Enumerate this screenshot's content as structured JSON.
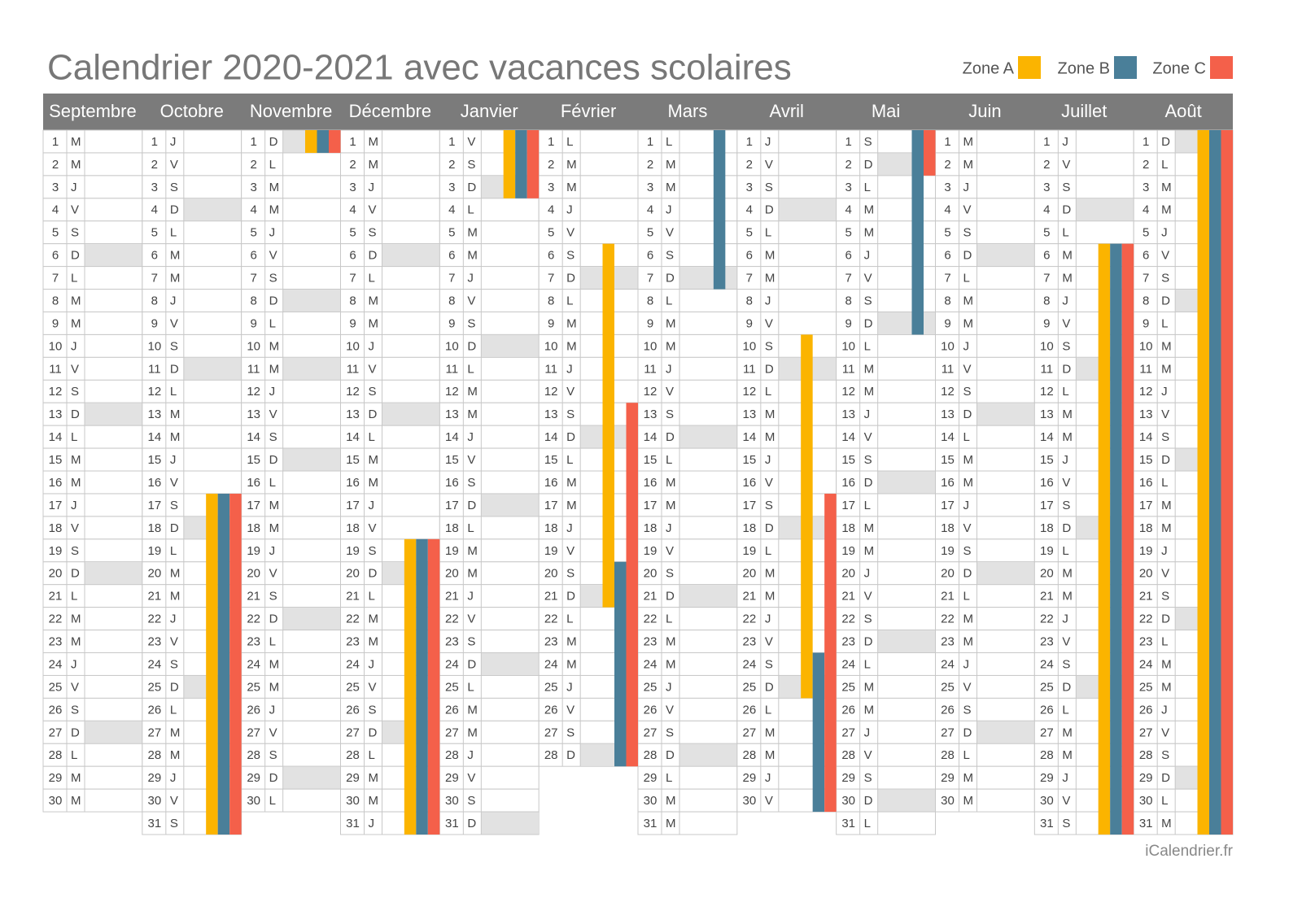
{
  "header": {
    "title": "Calendrier 2020-2021 avec vacances scolaires"
  },
  "zones": [
    {
      "name": "Zone A",
      "color": "#fbb400",
      "periods": [
        [
          1,
          17,
          31
        ],
        [
          2,
          1,
          1
        ],
        [
          3,
          19,
          31
        ],
        [
          4,
          1,
          3
        ],
        [
          5,
          6,
          21
        ],
        [
          7,
          10,
          25
        ],
        [
          10,
          6,
          31
        ],
        [
          11,
          1,
          31
        ]
      ]
    },
    {
      "name": "Zone B",
      "color": "#4a7f99",
      "periods": [
        [
          1,
          17,
          31
        ],
        [
          2,
          1,
          1
        ],
        [
          3,
          19,
          31
        ],
        [
          4,
          1,
          3
        ],
        [
          5,
          20,
          28
        ],
        [
          6,
          1,
          7
        ],
        [
          7,
          24,
          30
        ],
        [
          8,
          1,
          9
        ],
        [
          10,
          6,
          31
        ],
        [
          11,
          1,
          31
        ]
      ]
    },
    {
      "name": "Zone C",
      "color": "#f4604a",
      "periods": [
        [
          1,
          17,
          31
        ],
        [
          2,
          1,
          1
        ],
        [
          3,
          19,
          31
        ],
        [
          4,
          1,
          3
        ],
        [
          5,
          13,
          28
        ],
        [
          7,
          17,
          30
        ],
        [
          8,
          1,
          2
        ],
        [
          10,
          6,
          31
        ],
        [
          11,
          1,
          31
        ]
      ]
    }
  ],
  "months": [
    {
      "name": "Septembre",
      "days": [
        1,
        2,
        3,
        4,
        5,
        6,
        7,
        8,
        9,
        10,
        11,
        12,
        13,
        14,
        15,
        16,
        17,
        18,
        19,
        20,
        21,
        22,
        23,
        24,
        25,
        26,
        27,
        28,
        29,
        30
      ],
      "letters": [
        "M",
        "M",
        "J",
        "V",
        "S",
        "D",
        "L",
        "M",
        "M",
        "J",
        "V",
        "S",
        "D",
        "L",
        "M",
        "M",
        "J",
        "V",
        "S",
        "D",
        "L",
        "M",
        "M",
        "J",
        "V",
        "S",
        "D",
        "L",
        "M",
        "M"
      ],
      "shaded": [
        6,
        13,
        20,
        27
      ]
    },
    {
      "name": "Octobre",
      "days": [
        1,
        2,
        3,
        4,
        5,
        6,
        7,
        8,
        9,
        10,
        11,
        12,
        13,
        14,
        15,
        16,
        17,
        18,
        19,
        20,
        21,
        22,
        23,
        24,
        25,
        26,
        27,
        28,
        29,
        30,
        31
      ],
      "letters": [
        "J",
        "V",
        "S",
        "D",
        "L",
        "M",
        "M",
        "J",
        "V",
        "S",
        "D",
        "L",
        "M",
        "M",
        "J",
        "V",
        "S",
        "D",
        "L",
        "M",
        "M",
        "J",
        "V",
        "S",
        "D",
        "L",
        "M",
        "M",
        "J",
        "V",
        "S"
      ],
      "shaded": [
        4,
        11,
        18,
        25
      ]
    },
    {
      "name": "Novembre",
      "days": [
        1,
        2,
        3,
        4,
        5,
        6,
        7,
        8,
        9,
        10,
        11,
        12,
        13,
        14,
        15,
        16,
        17,
        18,
        19,
        20,
        21,
        22,
        23,
        24,
        25,
        26,
        27,
        28,
        29,
        30
      ],
      "letters": [
        "D",
        "L",
        "M",
        "M",
        "J",
        "V",
        "S",
        "D",
        "L",
        "M",
        "M",
        "J",
        "V",
        "S",
        "D",
        "L",
        "M",
        "M",
        "J",
        "V",
        "S",
        "D",
        "L",
        "M",
        "M",
        "J",
        "V",
        "S",
        "D",
        "L"
      ],
      "shaded": [
        1,
        8,
        11,
        15,
        22,
        29
      ]
    },
    {
      "name": "Décembre",
      "days": [
        1,
        2,
        3,
        4,
        5,
        6,
        7,
        8,
        9,
        10,
        11,
        12,
        13,
        14,
        15,
        16,
        17,
        18,
        19,
        20,
        21,
        22,
        23,
        24,
        25,
        26,
        27,
        28,
        29,
        30,
        31
      ],
      "letters": [
        "M",
        "M",
        "J",
        "V",
        "S",
        "D",
        "L",
        "M",
        "M",
        "J",
        "V",
        "S",
        "D",
        "L",
        "M",
        "M",
        "J",
        "V",
        "S",
        "D",
        "L",
        "M",
        "M",
        "J",
        "V",
        "S",
        "D",
        "L",
        "M",
        "M",
        "J"
      ],
      "shaded": [
        6,
        13,
        20,
        27
      ]
    },
    {
      "name": "Janvier",
      "days": [
        1,
        2,
        3,
        4,
        5,
        6,
        7,
        8,
        9,
        10,
        11,
        12,
        13,
        14,
        15,
        16,
        17,
        18,
        19,
        20,
        21,
        22,
        23,
        24,
        25,
        26,
        27,
        28,
        29,
        30,
        31
      ],
      "letters": [
        "V",
        "S",
        "D",
        "L",
        "M",
        "M",
        "J",
        "V",
        "S",
        "D",
        "L",
        "M",
        "M",
        "J",
        "V",
        "S",
        "D",
        "L",
        "M",
        "M",
        "J",
        "V",
        "S",
        "D",
        "L",
        "M",
        "M",
        "J",
        "V",
        "S",
        "D"
      ],
      "shaded": [
        3,
        10,
        17,
        24,
        31
      ]
    },
    {
      "name": "Février",
      "days": [
        1,
        2,
        3,
        4,
        5,
        6,
        7,
        8,
        9,
        10,
        11,
        12,
        13,
        14,
        15,
        16,
        17,
        18,
        19,
        20,
        21,
        22,
        23,
        24,
        25,
        26,
        27,
        28
      ],
      "letters": [
        "L",
        "M",
        "M",
        "J",
        "V",
        "S",
        "D",
        "L",
        "M",
        "M",
        "J",
        "V",
        "S",
        "D",
        "L",
        "M",
        "M",
        "J",
        "V",
        "S",
        "D",
        "L",
        "M",
        "M",
        "J",
        "V",
        "S",
        "D"
      ],
      "shaded": [
        7,
        14,
        21,
        28
      ]
    },
    {
      "name": "Mars",
      "days": [
        1,
        2,
        3,
        4,
        5,
        6,
        7,
        8,
        9,
        10,
        11,
        12,
        13,
        14,
        15,
        16,
        17,
        18,
        19,
        20,
        21,
        22,
        23,
        24,
        25,
        26,
        27,
        28,
        29,
        30,
        31
      ],
      "letters": [
        "L",
        "M",
        "M",
        "J",
        "V",
        "S",
        "D",
        "L",
        "M",
        "M",
        "J",
        "V",
        "S",
        "D",
        "L",
        "M",
        "M",
        "J",
        "V",
        "S",
        "D",
        "L",
        "M",
        "M",
        "J",
        "V",
        "S",
        "D",
        "L",
        "M",
        "M"
      ],
      "shaded": [
        7,
        14,
        21,
        28
      ]
    },
    {
      "name": "Avril",
      "days": [
        1,
        2,
        3,
        4,
        5,
        6,
        7,
        8,
        9,
        10,
        11,
        12,
        13,
        14,
        15,
        16,
        17,
        18,
        19,
        20,
        21,
        22,
        23,
        24,
        25,
        26,
        27,
        28,
        29,
        30
      ],
      "letters": [
        "J",
        "V",
        "S",
        "D",
        "L",
        "M",
        "M",
        "J",
        "V",
        "S",
        "D",
        "L",
        "M",
        "M",
        "J",
        "V",
        "S",
        "D",
        "L",
        "M",
        "M",
        "J",
        "V",
        "S",
        "D",
        "L",
        "M",
        "M",
        "J",
        "V"
      ],
      "shaded": [
        4,
        11,
        18,
        25
      ]
    },
    {
      "name": "Mai",
      "days": [
        1,
        2,
        3,
        4,
        5,
        6,
        7,
        8,
        9,
        10,
        11,
        12,
        13,
        14,
        15,
        16,
        17,
        18,
        19,
        20,
        21,
        22,
        23,
        24,
        25,
        26,
        27,
        28,
        29,
        30,
        31
      ],
      "letters": [
        "S",
        "D",
        "L",
        "M",
        "M",
        "J",
        "V",
        "S",
        "D",
        "L",
        "M",
        "M",
        "J",
        "V",
        "S",
        "D",
        "L",
        "M",
        "M",
        "J",
        "V",
        "S",
        "D",
        "L",
        "M",
        "M",
        "J",
        "V",
        "S",
        "D",
        "L"
      ],
      "shaded": [
        2,
        9,
        16,
        23,
        30
      ]
    },
    {
      "name": "Juin",
      "days": [
        1,
        2,
        3,
        4,
        5,
        6,
        7,
        8,
        9,
        10,
        11,
        12,
        13,
        14,
        15,
        16,
        17,
        18,
        19,
        20,
        21,
        22,
        23,
        24,
        25,
        26,
        27,
        28,
        29,
        30
      ],
      "letters": [
        "M",
        "M",
        "J",
        "V",
        "S",
        "D",
        "L",
        "M",
        "M",
        "J",
        "V",
        "S",
        "D",
        "L",
        "M",
        "M",
        "J",
        "V",
        "S",
        "D",
        "L",
        "M",
        "M",
        "J",
        "V",
        "S",
        "D",
        "L",
        "M",
        "M"
      ],
      "shaded": [
        6,
        13,
        20,
        27
      ]
    },
    {
      "name": "Juillet",
      "days": [
        1,
        2,
        3,
        4,
        5,
        6,
        7,
        8,
        9,
        10,
        11,
        12,
        13,
        14,
        15,
        16,
        17,
        18,
        19,
        20,
        21,
        22,
        23,
        24,
        25,
        26,
        27,
        28,
        29,
        30,
        31
      ],
      "letters": [
        "J",
        "V",
        "S",
        "D",
        "L",
        "M",
        "M",
        "J",
        "V",
        "S",
        "D",
        "L",
        "M",
        "M",
        "J",
        "V",
        "S",
        "D",
        "L",
        "M",
        "M",
        "J",
        "V",
        "S",
        "D",
        "L",
        "M",
        "M",
        "J",
        "V",
        "S"
      ],
      "shaded": [
        4,
        11,
        18,
        25
      ]
    },
    {
      "name": "Août",
      "days": [
        1,
        2,
        3,
        4,
        5,
        6,
        7,
        8,
        9,
        10,
        11,
        12,
        13,
        14,
        15,
        16,
        17,
        18,
        19,
        20,
        21,
        22,
        23,
        24,
        25,
        26,
        27,
        28,
        29,
        30,
        31
      ],
      "letters": [
        "D",
        "L",
        "M",
        "M",
        "J",
        "V",
        "S",
        "D",
        "L",
        "M",
        "M",
        "J",
        "V",
        "S",
        "D",
        "L",
        "M",
        "M",
        "J",
        "V",
        "S",
        "D",
        "L",
        "M",
        "M",
        "J",
        "V",
        "S",
        "D",
        "L",
        "M"
      ],
      "shaded": [
        1,
        8,
        15,
        22,
        29
      ]
    }
  ],
  "footer": "iCalendrier.fr"
}
